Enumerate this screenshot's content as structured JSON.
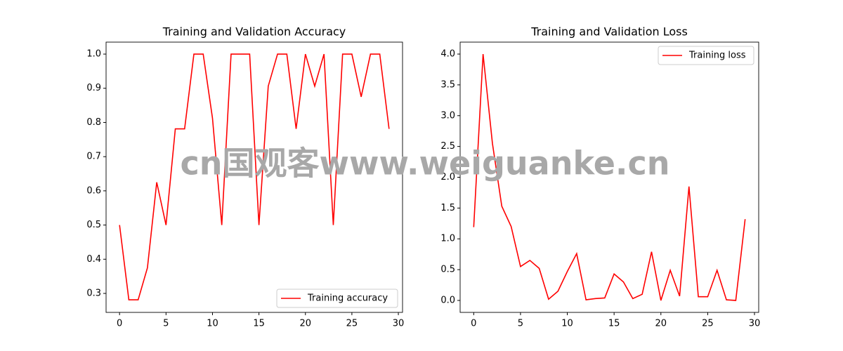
{
  "chart_data": [
    {
      "type": "line",
      "title": "Training and Validation Accuracy",
      "x": [
        0,
        1,
        2,
        3,
        4,
        5,
        6,
        7,
        8,
        9,
        10,
        11,
        12,
        13,
        14,
        15,
        16,
        17,
        18,
        19,
        20,
        21,
        22,
        23,
        24,
        25,
        26,
        27,
        28,
        29
      ],
      "xlim": [
        -1.45,
        30.45
      ],
      "xticks": [
        0,
        5,
        10,
        15,
        20,
        25,
        30
      ],
      "ylim": [
        0.2445,
        1.035
      ],
      "yticks": [
        0.3,
        0.4,
        0.5,
        0.6,
        0.7,
        0.8,
        0.9,
        {
          "value": 1,
          "label": "1.0"
        }
      ],
      "legend": "lower right",
      "series": [
        {
          "name": "Training accuracy",
          "color": "#ff0000",
          "values": [
            0.5,
            0.28125,
            0.28125,
            0.375,
            0.625,
            0.5,
            0.78125,
            0.78125,
            1,
            1,
            0.8125,
            0.5,
            1,
            1,
            1,
            0.5,
            0.90625,
            1,
            1,
            0.78125,
            1,
            0.90625,
            1,
            0.5,
            1,
            1,
            0.875,
            1,
            1,
            0.78125
          ]
        }
      ]
    },
    {
      "type": "line",
      "title": "Training and Validation Loss",
      "x": [
        0,
        1,
        2,
        3,
        4,
        5,
        6,
        7,
        8,
        9,
        10,
        11,
        12,
        13,
        14,
        15,
        16,
        17,
        18,
        19,
        20,
        21,
        22,
        23,
        24,
        25,
        26,
        27,
        28,
        29
      ],
      "xlim": [
        -1.45,
        30.45
      ],
      "xticks": [
        0,
        5,
        10,
        15,
        20,
        25,
        30
      ],
      "ylim": [
        -0.194,
        4.194
      ],
      "yticks": [
        {
          "value": 0,
          "label": "0.0"
        },
        0.5,
        {
          "value": 1,
          "label": "1.0"
        },
        1.5,
        {
          "value": 2,
          "label": "2.0"
        },
        2.5,
        {
          "value": 3,
          "label": "3.0"
        },
        3.5,
        {
          "value": 4,
          "label": "4.0"
        }
      ],
      "legend": "upper right",
      "series": [
        {
          "name": "Training loss",
          "color": "#ff0000",
          "values": [
            1.19,
            4.0,
            2.55,
            1.53,
            1.2,
            0.55,
            0.65,
            0.52,
            0.02,
            0.15,
            0.47,
            0.76,
            0.01,
            0.03,
            0.04,
            0.43,
            0.3,
            0.03,
            0.1,
            0.79,
            0.0,
            0.49,
            0.07,
            1.85,
            0.06,
            0.06,
            0.49,
            0.01,
            0.0,
            1.32
          ]
        }
      ]
    }
  ],
  "watermark": "cn国观客www.weiguanke.cn"
}
